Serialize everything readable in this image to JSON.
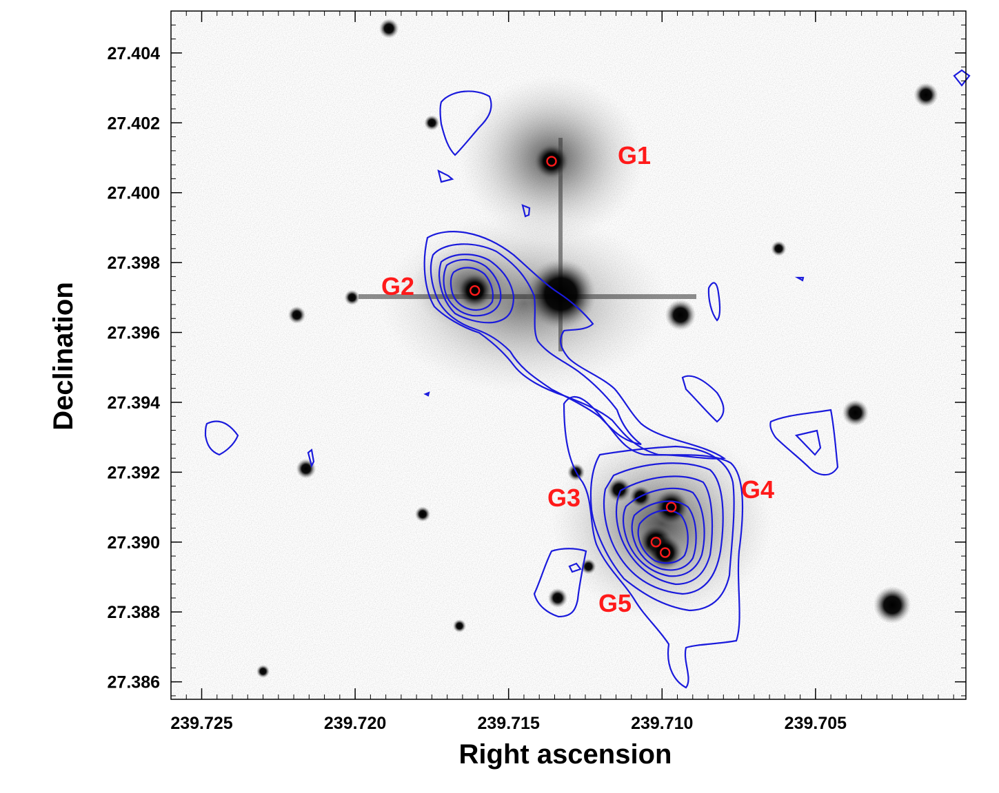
{
  "chart_data": {
    "type": "scatter",
    "title": "",
    "xlabel": "Right ascension",
    "ylabel": "Declination",
    "xlim": [
      239.726,
      239.7001
    ],
    "ylim": [
      27.3855,
      27.4052
    ],
    "x_reversed": true,
    "xticks": [
      239.725,
      239.72,
      239.715,
      239.71,
      239.705
    ],
    "xtick_labels": [
      "239.725",
      "239.720",
      "239.715",
      "239.710",
      "239.705"
    ],
    "yticks": [
      27.386,
      27.388,
      27.39,
      27.392,
      27.394,
      27.396,
      27.398,
      27.4,
      27.402,
      27.404
    ],
    "ytick_labels": [
      "27.386",
      "27.388",
      "27.390",
      "27.392",
      "27.394",
      "27.396",
      "27.398",
      "27.400",
      "27.402",
      "27.404"
    ],
    "background": "greyscale optical image (inverted)",
    "contour_color": "#1a1adc",
    "marker_color": "#ff1a1a",
    "galaxies": [
      {
        "label": "G1",
        "ra": 239.7136,
        "dec": 27.4009
      },
      {
        "label": "G2",
        "ra": 239.7161,
        "dec": 27.3972
      },
      {
        "label": "G3",
        "ra": 239.7102,
        "dec": 27.39
      },
      {
        "label": "G4",
        "ra": 239.7097,
        "dec": 27.391
      },
      {
        "label": "G5",
        "ra": 239.7099,
        "dec": 27.3897
      }
    ],
    "stars": [
      {
        "ra": 239.7133,
        "dec": 27.3971,
        "size": 3.2
      },
      {
        "ra": 239.7094,
        "dec": 27.3965,
        "size": 1.4
      },
      {
        "ra": 239.7037,
        "dec": 27.3937,
        "size": 1.2
      },
      {
        "ra": 239.7025,
        "dec": 27.3882,
        "size": 1.7
      },
      {
        "ra": 239.7014,
        "dec": 27.4028,
        "size": 1.1
      },
      {
        "ra": 239.7219,
        "dec": 27.3965,
        "size": 0.8
      },
      {
        "ra": 239.7128,
        "dec": 27.392,
        "size": 0.8
      },
      {
        "ra": 239.7114,
        "dec": 27.3915,
        "size": 1.1
      },
      {
        "ra": 239.7107,
        "dec": 27.3913,
        "size": 1.0
      },
      {
        "ra": 239.7124,
        "dec": 27.3893,
        "size": 0.7
      },
      {
        "ra": 239.7134,
        "dec": 27.3884,
        "size": 0.9
      },
      {
        "ra": 239.7189,
        "dec": 27.4047,
        "size": 0.9
      },
      {
        "ra": 239.7062,
        "dec": 27.3984,
        "size": 0.7
      },
      {
        "ra": 239.7216,
        "dec": 27.3921,
        "size": 0.9
      },
      {
        "ra": 239.7178,
        "dec": 27.3908,
        "size": 0.7
      },
      {
        "ra": 239.7175,
        "dec": 27.402,
        "size": 0.7
      },
      {
        "ra": 239.7166,
        "dec": 27.3876,
        "size": 0.6
      },
      {
        "ra": 239.723,
        "dec": 27.3863,
        "size": 0.6
      },
      {
        "ra": 239.7201,
        "dec": 27.397,
        "size": 0.7
      }
    ]
  }
}
